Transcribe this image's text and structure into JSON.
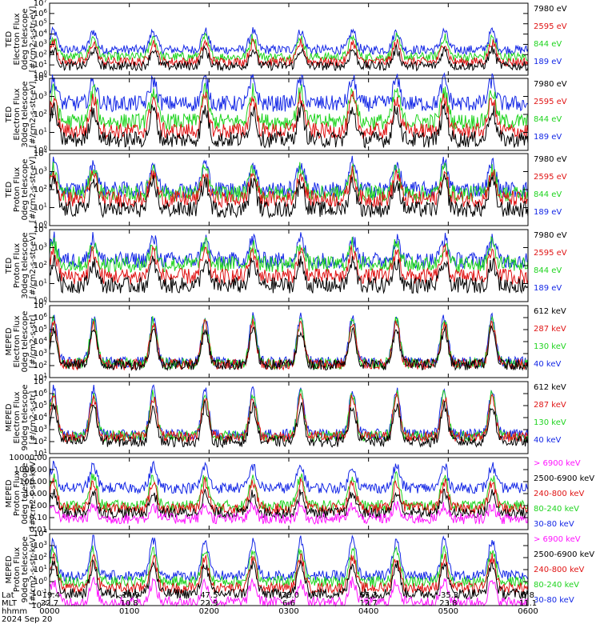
{
  "colors": {
    "blue": "#1428e6",
    "red": "#e01414",
    "green": "#1fd41f",
    "black": "#000000",
    "magenta": "#ff14ff"
  },
  "chart_data": [
    {
      "type": "line",
      "ylabel": [
        "TED",
        "Electron Flux",
        "0deg telescope",
        "[#/cm2-s-str-eV]"
      ],
      "yscale": "log",
      "ylim": [
        1,
        10000000
      ],
      "yticks": [
        {
          "label_html": "10<tspan dy='-4' font-size='7'>0</tspan>",
          "value": 1
        },
        {
          "label_html": "10<tspan dy='-4' font-size='7'>1</tspan>",
          "value": 10
        },
        {
          "label_html": "10<tspan dy='-4' font-size='7'>2</tspan>",
          "value": 100
        },
        {
          "label_html": "10<tspan dy='-4' font-size='7'>3</tspan>",
          "value": 1000
        },
        {
          "label_html": "10<tspan dy='-4' font-size='7'>4</tspan>",
          "value": 10000
        },
        {
          "label_html": "10<tspan dy='-4' font-size='7'>5</tspan>",
          "value": 100000
        },
        {
          "label_html": "10<tspan dy='-4' font-size='7'>6</tspan>",
          "value": 1000000
        },
        {
          "label_html": "10<tspan dy='-4' font-size='7'>7</tspan>",
          "value": 10000000
        }
      ],
      "legend": [
        {
          "name": "7980 eV",
          "color": "black"
        },
        {
          "name": "2595 eV",
          "color": "red"
        },
        {
          "name": "844 eV",
          "color": "green"
        },
        {
          "name": "189 eV",
          "color": "blue"
        }
      ],
      "series": [
        {
          "color": "blue",
          "base": 300,
          "peak": 20000
        },
        {
          "color": "green",
          "base": 60,
          "peak": 5000
        },
        {
          "color": "red",
          "base": 20,
          "peak": 1500
        },
        {
          "color": "black",
          "base": 8,
          "peak": 300
        }
      ]
    },
    {
      "type": "line",
      "ylabel": [
        "TED",
        "Electron Flux",
        "30deg telescope",
        "[#/cm2-s-str-eV]"
      ],
      "yscale": "log",
      "ylim": [
        1,
        10000
      ],
      "yticks": [
        {
          "label_html": "10<tspan dy='-4' font-size='7'>0</tspan>",
          "value": 1
        },
        {
          "label_html": "10<tspan dy='-4' font-size='7'>1</tspan>",
          "value": 10
        },
        {
          "label_html": "10<tspan dy='-4' font-size='7'>2</tspan>",
          "value": 100
        },
        {
          "label_html": "10<tspan dy='-4' font-size='7'>3</tspan>",
          "value": 1000
        },
        {
          "label_html": "10<tspan dy='-4' font-size='7'>4</tspan>",
          "value": 10000
        }
      ],
      "legend": [
        {
          "name": "7980 eV",
          "color": "black"
        },
        {
          "name": "2595 eV",
          "color": "red"
        },
        {
          "name": "844 eV",
          "color": "green"
        },
        {
          "name": "189 eV",
          "color": "blue"
        }
      ],
      "series": [
        {
          "color": "blue",
          "base": 400,
          "peak": 8000
        },
        {
          "color": "green",
          "base": 40,
          "peak": 2000
        },
        {
          "color": "red",
          "base": 12,
          "peak": 800
        },
        {
          "color": "black",
          "base": 4,
          "peak": 200
        }
      ]
    },
    {
      "type": "line",
      "ylabel": [
        "TED",
        "Proton Flux",
        "0deg telescope",
        "[#/cm2-s-str-eV]"
      ],
      "yscale": "log",
      "ylim": [
        1,
        10000
      ],
      "yticks": [
        {
          "label_html": "10<tspan dy='-4' font-size='7'>0</tspan>",
          "value": 1
        },
        {
          "label_html": "10<tspan dy='-4' font-size='7'>1</tspan>",
          "value": 10
        },
        {
          "label_html": "10<tspan dy='-4' font-size='7'>2</tspan>",
          "value": 100
        },
        {
          "label_html": "10<tspan dy='-4' font-size='7'>3</tspan>",
          "value": 1000
        },
        {
          "label_html": "10<tspan dy='-4' font-size='7'>4</tspan>",
          "value": 10000
        }
      ],
      "legend": [
        {
          "name": "7980 eV",
          "color": "black"
        },
        {
          "name": "2595 eV",
          "color": "red"
        },
        {
          "name": "844 eV",
          "color": "green"
        },
        {
          "name": "189 eV",
          "color": "blue"
        }
      ],
      "series": [
        {
          "color": "blue",
          "base": 100,
          "peak": 3000
        },
        {
          "color": "green",
          "base": 60,
          "peak": 1500
        },
        {
          "color": "red",
          "base": 30,
          "peak": 800
        },
        {
          "color": "black",
          "base": 8,
          "peak": 300
        }
      ]
    },
    {
      "type": "line",
      "ylabel": [
        "TED",
        "Proton Flux",
        "30deg telescope",
        "[#/cm2-s-str-eV]"
      ],
      "yscale": "log",
      "ylim": [
        1,
        10000
      ],
      "yticks": [
        {
          "label_html": "10<tspan dy='-4' font-size='7'>0</tspan>",
          "value": 1
        },
        {
          "label_html": "10<tspan dy='-4' font-size='7'>1</tspan>",
          "value": 10
        },
        {
          "label_html": "10<tspan dy='-4' font-size='7'>2</tspan>",
          "value": 100
        },
        {
          "label_html": "10<tspan dy='-4' font-size='7'>3</tspan>",
          "value": 1000
        },
        {
          "label_html": "10<tspan dy='-4' font-size='7'>4</tspan>",
          "value": 10000
        }
      ],
      "legend": [
        {
          "name": "7980 eV",
          "color": "black"
        },
        {
          "name": "2595 eV",
          "color": "red"
        },
        {
          "name": "844 eV",
          "color": "green"
        },
        {
          "name": "189 eV",
          "color": "blue"
        }
      ],
      "series": [
        {
          "color": "blue",
          "base": 200,
          "peak": 3000
        },
        {
          "color": "green",
          "base": 120,
          "peak": 1500
        },
        {
          "color": "red",
          "base": 25,
          "peak": 600
        },
        {
          "color": "black",
          "base": 8,
          "peak": 150
        }
      ]
    },
    {
      "type": "line",
      "ylabel": [
        "MEPED",
        "Electron Flux",
        "0deg telescope",
        "[#/cm2-s-str]"
      ],
      "yscale": "log",
      "ylim": [
        10,
        10000000
      ],
      "yticks": [
        {
          "label_html": "10<tspan dy='-4' font-size='7'>1</tspan>",
          "value": 10
        },
        {
          "label_html": "10<tspan dy='-4' font-size='7'>2</tspan>",
          "value": 100
        },
        {
          "label_html": "10<tspan dy='-4' font-size='7'>3</tspan>",
          "value": 1000
        },
        {
          "label_html": "10<tspan dy='-4' font-size='7'>4</tspan>",
          "value": 10000
        },
        {
          "label_html": "10<tspan dy='-4' font-size='7'>5</tspan>",
          "value": 100000
        },
        {
          "label_html": "10<tspan dy='-4' font-size='7'>6</tspan>",
          "value": 1000000
        },
        {
          "label_html": "10<tspan dy='-4' font-size='7'>7</tspan>",
          "value": 10000000
        }
      ],
      "legend": [
        {
          "name": "612 keV",
          "color": "black"
        },
        {
          "name": "287 keV",
          "color": "red"
        },
        {
          "name": "130 keV",
          "color": "green"
        },
        {
          "name": "40 keV",
          "color": "blue"
        }
      ],
      "series": [
        {
          "color": "blue",
          "base": 200,
          "peak": 1000000
        },
        {
          "color": "green",
          "base": 150,
          "peak": 600000
        },
        {
          "color": "red",
          "base": 130,
          "peak": 300000
        },
        {
          "color": "black",
          "base": 120,
          "peak": 100000
        }
      ]
    },
    {
      "type": "line",
      "ylabel": [
        "MEPED",
        "Electron Flux",
        "90deg telescope",
        "[#/cm2-s-str]"
      ],
      "yscale": "log",
      "ylim": [
        10,
        10000000
      ],
      "yticks": [
        {
          "label_html": "10<tspan dy='-4' font-size='7'>1</tspan>",
          "value": 10
        },
        {
          "label_html": "10<tspan dy='-4' font-size='7'>2</tspan>",
          "value": 100
        },
        {
          "label_html": "10<tspan dy='-4' font-size='7'>3</tspan>",
          "value": 1000
        },
        {
          "label_html": "10<tspan dy='-4' font-size='7'>4</tspan>",
          "value": 10000
        },
        {
          "label_html": "10<tspan dy='-4' font-size='7'>5</tspan>",
          "value": 100000
        },
        {
          "label_html": "10<tspan dy='-4' font-size='7'>6</tspan>",
          "value": 1000000
        },
        {
          "label_html": "10<tspan dy='-4' font-size='7'>7</tspan>",
          "value": 10000000
        }
      ],
      "legend": [
        {
          "name": "612 keV",
          "color": "black"
        },
        {
          "name": "287 keV",
          "color": "red"
        },
        {
          "name": "130 keV",
          "color": "green"
        },
        {
          "name": "40 keV",
          "color": "blue"
        }
      ],
      "series": [
        {
          "color": "blue",
          "base": 400,
          "peak": 2000000
        },
        {
          "color": "green",
          "base": 300,
          "peak": 1000000
        },
        {
          "color": "red",
          "base": 250,
          "peak": 500000
        },
        {
          "color": "black",
          "base": 100,
          "peak": 100000
        }
      ]
    },
    {
      "type": "line",
      "ylabel": [
        "MEPED",
        "Proton Flux",
        "0deg telescope",
        "[#/cm2-s-str-keV]"
      ],
      "yscale": "log",
      "ylim": [
        0.01,
        10000
      ],
      "yticks": [
        {
          "label_html": "0.01",
          "value": 0.01
        },
        {
          "label_html": "0.10",
          "value": 0.1
        },
        {
          "label_html": "1.00",
          "value": 1
        },
        {
          "label_html": "10.00",
          "value": 10
        },
        {
          "label_html": "100.00",
          "value": 100
        },
        {
          "label_html": "1000.00",
          "value": 1000
        },
        {
          "label_html": "10000.00",
          "value": 10000
        }
      ],
      "legend": [
        {
          "name": "> 6900 keV",
          "color": "magenta"
        },
        {
          "name": "2500-6900 keV",
          "color": "black"
        },
        {
          "name": "240-800 keV",
          "color": "red"
        },
        {
          "name": "80-240 keV",
          "color": "green"
        },
        {
          "name": "30-80 keV",
          "color": "blue"
        }
      ],
      "series": [
        {
          "color": "blue",
          "base": 30,
          "peak": 2000
        },
        {
          "color": "green",
          "base": 1,
          "peak": 300
        },
        {
          "color": "red",
          "base": 0.6,
          "peak": 80
        },
        {
          "color": "black",
          "base": 0.25,
          "peak": 10
        },
        {
          "color": "magenta",
          "base": 0.08,
          "peak": 1
        }
      ]
    },
    {
      "type": "line",
      "ylabel": [
        "MEPED",
        "Proton Flux",
        "90deg telescope",
        "[#/cm2-s-str-keV]"
      ],
      "yscale": "log",
      "ylim": [
        0.01,
        10000
      ],
      "yticks": [
        {
          "label_html": "10<tspan dy='-4' font-size='7'>-2</tspan>",
          "value": 0.01
        },
        {
          "label_html": "10<tspan dy='-4' font-size='7'>-1</tspan>",
          "value": 0.1
        },
        {
          "label_html": "10<tspan dy='-4' font-size='7'>0</tspan>",
          "value": 1
        },
        {
          "label_html": "10<tspan dy='-4' font-size='7'>1</tspan>",
          "value": 10
        },
        {
          "label_html": "10<tspan dy='-4' font-size='7'>2</tspan>",
          "value": 100
        },
        {
          "label_html": "10<tspan dy='-4' font-size='7'>3</tspan>",
          "value": 1000
        },
        {
          "label_html": "10<tspan dy='-4' font-size='7'>4</tspan>",
          "value": 10000
        }
      ],
      "legend": [
        {
          "name": "> 6900 keV",
          "color": "magenta"
        },
        {
          "name": "2500-6900 keV",
          "color": "black"
        },
        {
          "name": "240-800 keV",
          "color": "red"
        },
        {
          "name": "80-240 keV",
          "color": "green"
        },
        {
          "name": "30-80 keV",
          "color": "blue"
        }
      ],
      "series": [
        {
          "color": "blue",
          "base": 3,
          "peak": 3000
        },
        {
          "color": "green",
          "base": 1,
          "peak": 500
        },
        {
          "color": "red",
          "base": 0.3,
          "peak": 100
        },
        {
          "color": "black",
          "base": 0.1,
          "peak": 30
        },
        {
          "color": "magenta",
          "base": 0.02,
          "peak": 1
        }
      ]
    }
  ],
  "x_axis": {
    "row_names": [
      "Lat",
      "MLT",
      "hhmm",
      "2024 Sep 20"
    ],
    "ticks": [
      {
        "lat": "-19.4",
        "mlt": "22.7",
        "hhmm": "0000",
        "hour": 0
      },
      {
        "lat": "-14.9",
        "mlt": "10.8",
        "hhmm": "0100",
        "hour": 1
      },
      {
        "lat": "47.5",
        "mlt": "22.9",
        "hhmm": "0200",
        "hour": 2
      },
      {
        "lat": "-78.0",
        "mlt": "6.6",
        "hhmm": "0300",
        "hour": 3
      },
      {
        "lat": "65.3",
        "mlt": "12.7",
        "hhmm": "0400",
        "hour": 4
      },
      {
        "lat": "-35.3",
        "mlt": "23.8",
        "hhmm": "0500",
        "hour": 5
      },
      {
        "lat": "5.8",
        "mlt": "11.1",
        "hhmm": "0600",
        "hour": 6
      }
    ],
    "xlim": [
      0,
      6
    ]
  }
}
